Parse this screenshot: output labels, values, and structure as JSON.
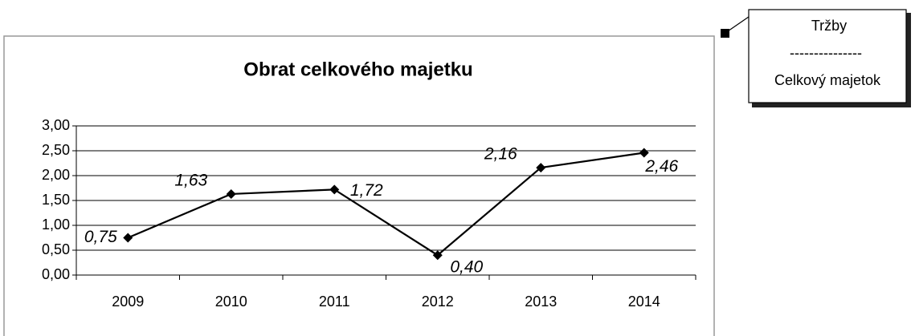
{
  "chart_data": {
    "type": "line",
    "title": "Obrat celkového majetku",
    "categories": [
      "2009",
      "2010",
      "2011",
      "2012",
      "2013",
      "2014"
    ],
    "values": [
      0.75,
      1.63,
      1.72,
      0.4,
      2.16,
      2.46
    ],
    "value_labels": [
      "0,75",
      "1,63",
      "1,72",
      "0,40",
      "2,16",
      "2,46"
    ],
    "color": "#000000",
    "ylim": [
      0,
      3
    ],
    "yticks": [
      {
        "value": 0,
        "label": "0,00"
      },
      {
        "value": 0.5,
        "label": "0,50"
      },
      {
        "value": 1,
        "label": "1,00"
      },
      {
        "value": 1.5,
        "label": "1,50"
      },
      {
        "value": 2,
        "label": "2,00"
      },
      {
        "value": 2.5,
        "label": "2,50"
      },
      {
        "value": 3,
        "label": "3,00"
      }
    ],
    "grid": true,
    "annotation": {
      "numerator": "Tržby",
      "separator": "---------------",
      "denominator": "Celkový majetok"
    }
  }
}
